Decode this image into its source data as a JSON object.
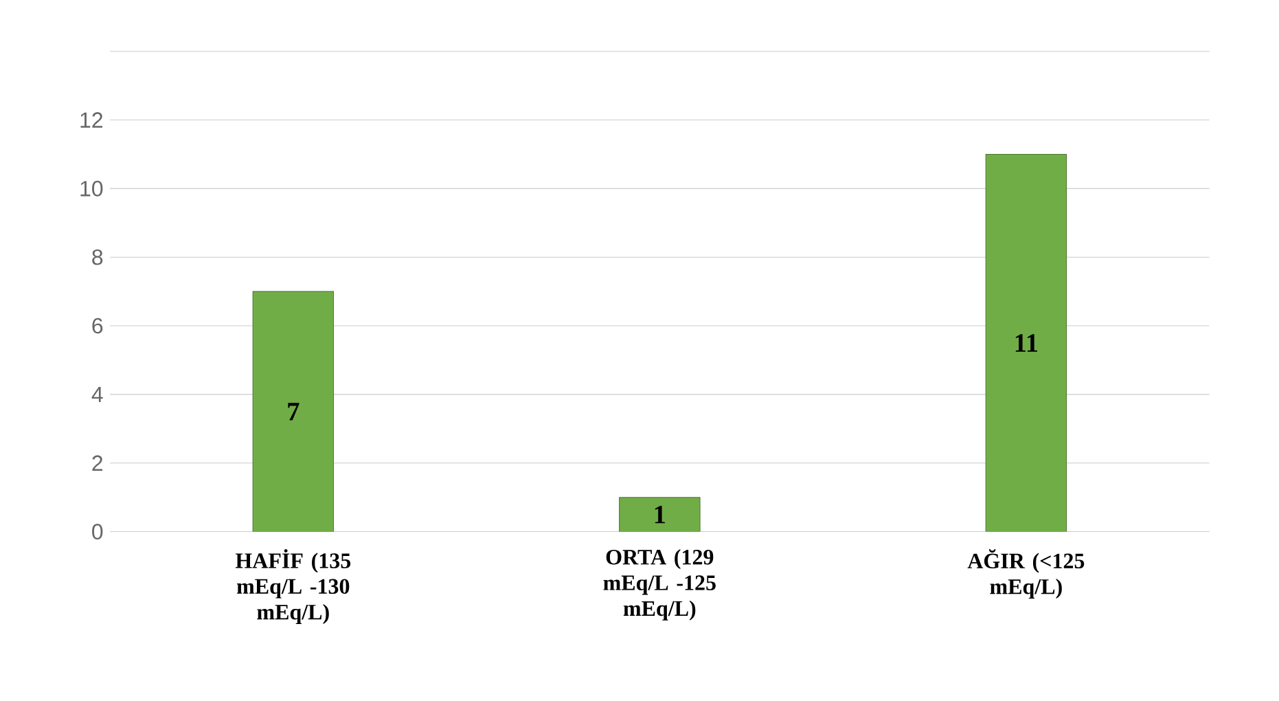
{
  "chart_data": {
    "type": "bar",
    "categories": [
      "HAFİF (135 mEq/L -130 mEq/L)",
      "ORTA  (129 mEq/L -125 mEq/L)",
      "AĞIR (<125 mEq/L)"
    ],
    "values": [
      7,
      1,
      11
    ],
    "color": "#70ad47",
    "ylim": [
      0,
      14
    ],
    "yticks": [
      0,
      2,
      4,
      6,
      8,
      10,
      12,
      {
        "value": 14,
        "label": null
      }
    ],
    "grid": "y",
    "data_labels": true
  }
}
